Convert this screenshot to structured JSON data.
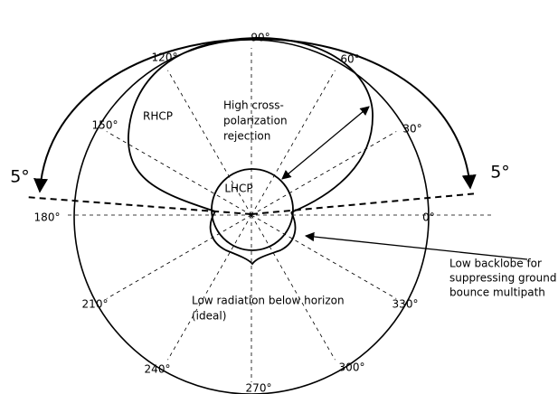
{
  "angle_labels": [
    "90°",
    "120°",
    "60°",
    "150°",
    "30°",
    "180°",
    "0°",
    "210°",
    "330°",
    "240°",
    "300°",
    "270°"
  ],
  "elevation_labels": [
    "5°",
    "5°"
  ],
  "annotations": {
    "rhcp": "RHCP",
    "lhcp": "LHCP",
    "cross_pol": [
      "High cross-",
      "polarization",
      "rejection"
    ],
    "backlobe": [
      "Low backlobe for",
      "suppressing ground",
      "bounce multipath"
    ],
    "below_horizon": [
      "Low radiation below horizon",
      "(ideal)"
    ]
  }
}
